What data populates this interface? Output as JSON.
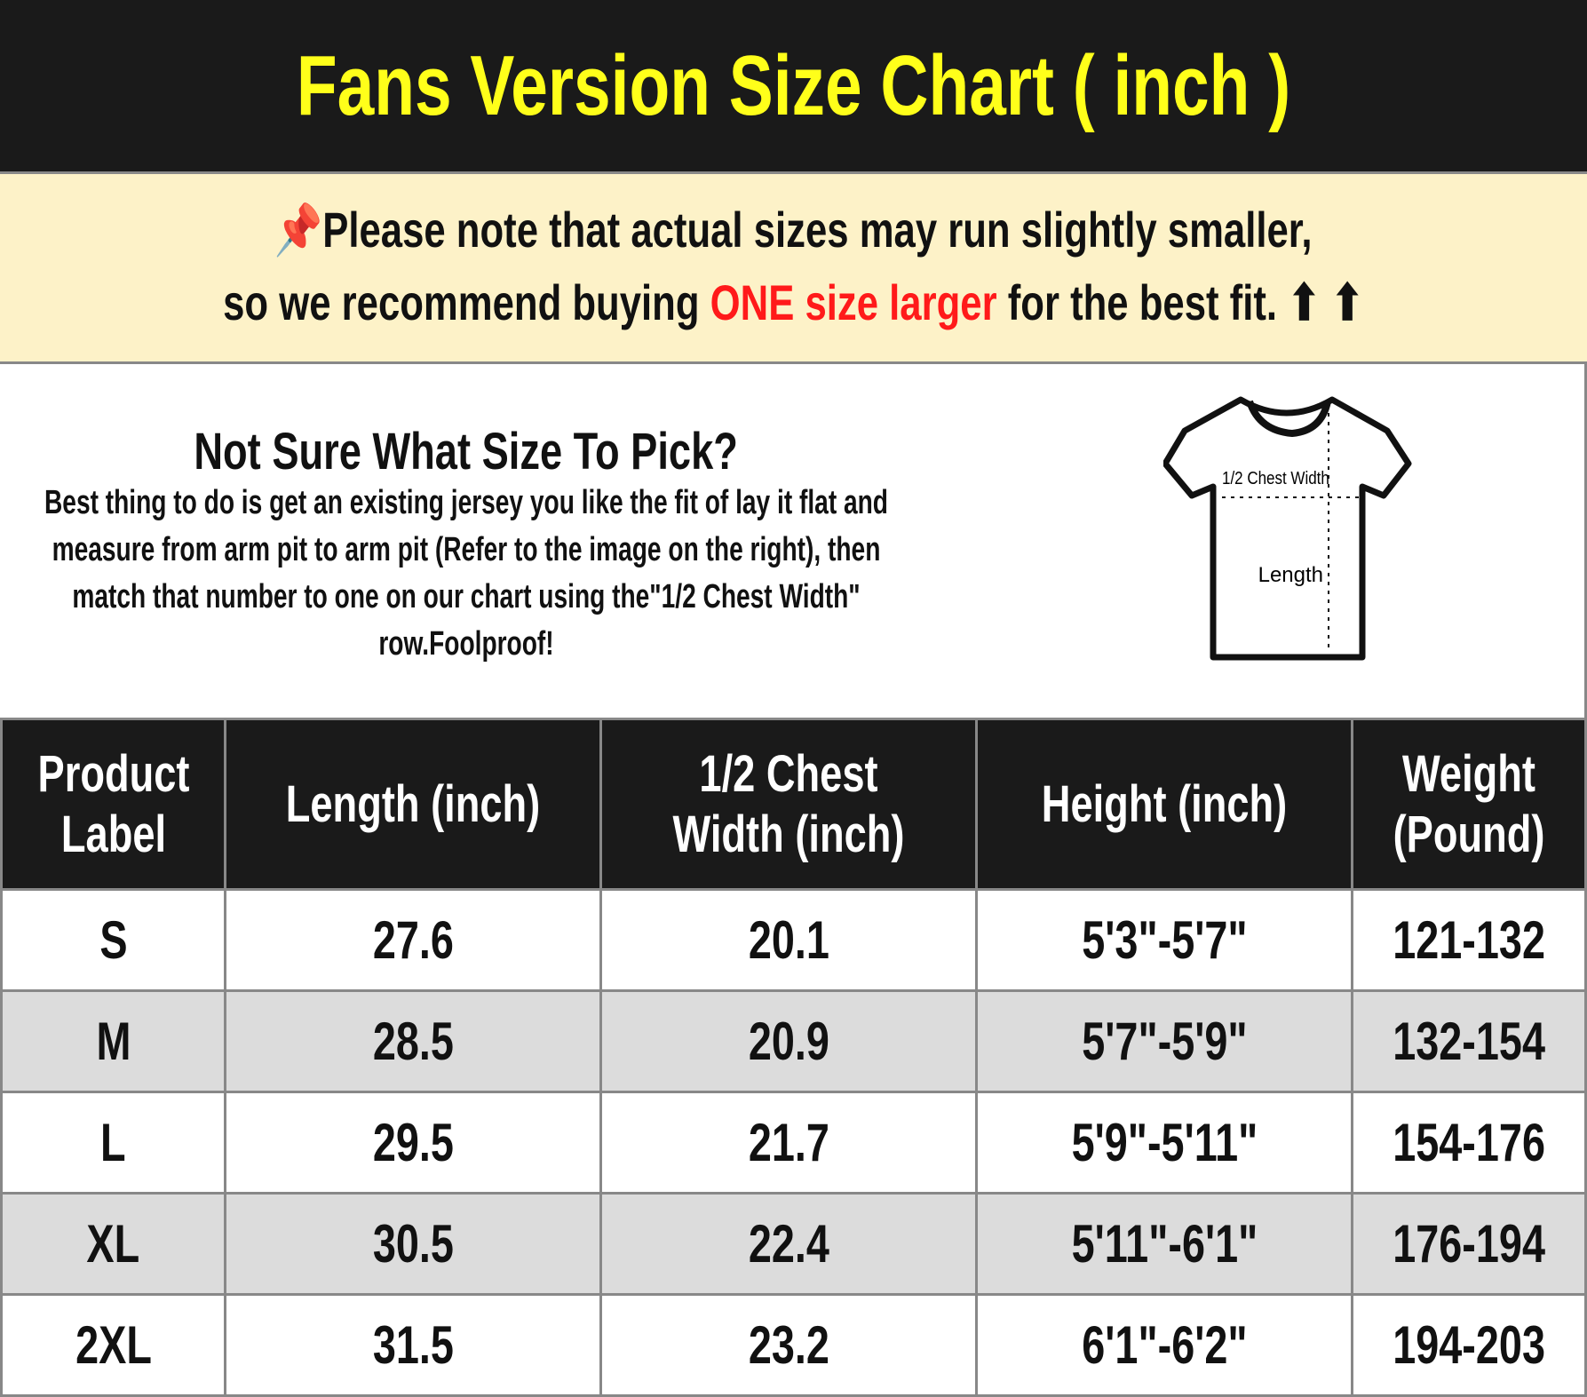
{
  "title": "Fans Version Size Chart ( inch )",
  "note": {
    "icon": "pushpin-icon",
    "line1": "Please note that actual sizes may run slightly smaller,",
    "line2_pre": "so we recommend buying ",
    "line2_highlight": "ONE size larger",
    "line2_post": " for the best fit.",
    "arrows": "⬆ ⬆",
    "highlight_color": "#ff1a1a"
  },
  "info": {
    "heading": "Not Sure What Size To Pick?",
    "body": "Best thing to do is get an existing jersey you like the fit of lay it flat and measure from arm pit to arm pit (Refer to the image on the right), then match that number to one on our chart using the\"1/2 Chest Width\" row.Foolproof!",
    "diagram": {
      "chest_label": "1/2 Chest Width",
      "length_label": "Length"
    }
  },
  "table": {
    "headers": [
      "Product Label",
      "Length (inch)",
      "1/2 Chest Width (inch)",
      "Height (inch)",
      "Weight (Pound)"
    ],
    "rows": [
      [
        "S",
        "27.6",
        "20.1",
        "5'3\"-5'7\"",
        "121-132"
      ],
      [
        "M",
        "28.5",
        "20.9",
        "5'7\"-5'9\"",
        "132-154"
      ],
      [
        "L",
        "29.5",
        "21.7",
        "5'9\"-5'11\"",
        "154-176"
      ],
      [
        "XL",
        "30.5",
        "22.4",
        "5'11\"-6'1\"",
        "176-194"
      ],
      [
        "2XL",
        "31.5",
        "23.2",
        "6'1\"-6'2\"",
        "194-203"
      ]
    ]
  },
  "colors": {
    "title": "#ffff1a",
    "header_bg": "#1a1a1a",
    "note_bg": "#fdf2c8"
  }
}
